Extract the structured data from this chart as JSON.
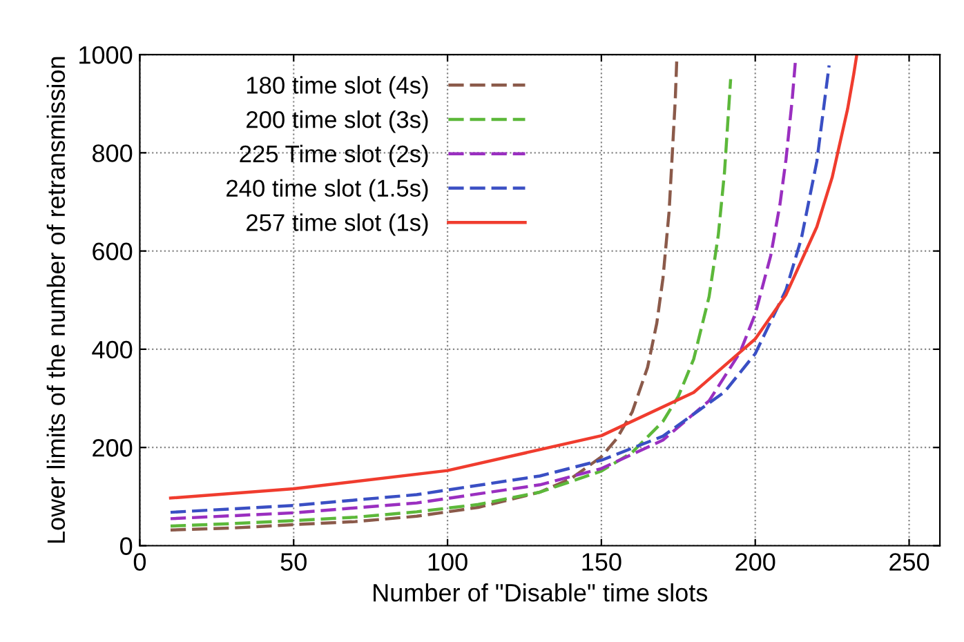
{
  "chart_data": {
    "type": "line",
    "xlabel": "Number of \"Disable\" time slots",
    "ylabel": "Lower limits of the number of retransmission",
    "xlim": [
      0,
      260
    ],
    "xticks": [
      0,
      50,
      100,
      150,
      200,
      250
    ],
    "ylim": [
      0,
      1000
    ],
    "yticks": [
      0,
      200,
      400,
      600,
      800,
      1000
    ],
    "grid": true,
    "legend": "top left",
    "marker": "none",
    "series": [
      {
        "name": "180 time slot (4s)",
        "color": "#8b5a4a",
        "line_style": "dashed",
        "x": [
          10,
          30,
          50,
          70,
          90,
          110,
          130,
          140,
          150,
          155,
          160,
          165,
          168,
          170,
          172,
          174,
          174.5
        ],
        "values": [
          32,
          36,
          43,
          49,
          60,
          78,
          109,
          136,
          181,
          218,
          272,
          363,
          453,
          544,
          680,
          907,
          990
        ]
      },
      {
        "name": "200 time slot (3s)",
        "color": "#5cb83a",
        "line_style": "dashed",
        "x": [
          10,
          30,
          50,
          70,
          90,
          110,
          130,
          150,
          160,
          170,
          175,
          180,
          185,
          188,
          190,
          192
        ],
        "values": [
          40,
          45,
          51,
          58,
          69,
          84,
          109,
          152,
          190,
          253,
          304,
          380,
          507,
          633,
          760,
          950
        ]
      },
      {
        "name": "225 Time slot (2s)",
        "color": "#9a2fc0",
        "line_style": "dashed",
        "x": [
          10,
          50,
          90,
          130,
          150,
          170,
          185,
          195,
          200,
          205,
          208,
          210,
          212,
          213
        ],
        "values": [
          55,
          67,
          87,
          124,
          157,
          215,
          295,
          393,
          472,
          590,
          694,
          787,
          908,
          983
        ]
      },
      {
        "name": "240 time slot (1.5s)",
        "color": "#3a4fc4",
        "line_style": "dashed",
        "x": [
          10,
          50,
          90,
          130,
          150,
          170,
          190,
          200,
          210,
          215,
          220,
          224
        ],
        "values": [
          68,
          82,
          104,
          142,
          174,
          223,
          313,
          391,
          521,
          626,
          782,
          978
        ]
      },
      {
        "name": "257 time slot (1s)",
        "color": "#f03c2e",
        "line_style": "solid",
        "x": [
          10,
          50,
          100,
          150,
          180,
          200,
          210,
          220,
          225,
          230,
          232,
          233
        ],
        "values": [
          97,
          116,
          153,
          224,
          312,
          421,
          511,
          649,
          750,
          889,
          960,
          1000
        ]
      }
    ]
  }
}
